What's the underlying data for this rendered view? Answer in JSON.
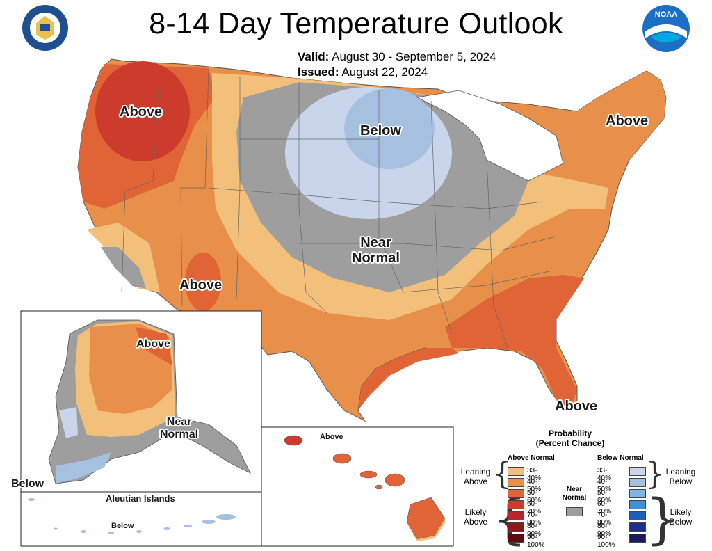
{
  "header": {
    "title": "8-14 Day Temperature Outlook",
    "valid_label": "Valid:",
    "valid_value": "August 30 - September 5, 2024",
    "issued_label": "Issued:",
    "issued_value": "August 22, 2024"
  },
  "logos": {
    "left": "department-of-commerce-seal",
    "right": "noaa-logo",
    "noaa_text": "NOAA"
  },
  "map_labels": {
    "nw_above": "Above",
    "sw_above": "Above",
    "ne_above": "Above",
    "fl_above": "Above",
    "below": "Below",
    "near_normal_1": "Near",
    "near_normal_2": "Normal"
  },
  "alaska": {
    "above": "Above",
    "near_1": "Near",
    "near_2": "Normal",
    "below": "Below",
    "aleutian_title": "Aleutian Islands",
    "aleutian_below": "Below"
  },
  "hawaii": {
    "above": "Above"
  },
  "legend": {
    "title_1": "Probability",
    "title_2": "(Percent Chance)",
    "above_head": "Above Normal",
    "below_head": "Below Normal",
    "near_1": "Near",
    "near_2": "Normal",
    "leaning_above_1": "Leaning",
    "leaning_above_2": "Above",
    "likely_above_1": "Likely",
    "likely_above_2": "Above",
    "leaning_below_1": "Leaning",
    "leaning_below_2": "Below",
    "likely_below_1": "Likely",
    "likely_below_2": "Below",
    "ranges": [
      "33-40%",
      "40-50%",
      "50-60%",
      "60-70%",
      "70-80%",
      "80-90%",
      "90-100%"
    ],
    "above_colors": [
      "#f2c07a",
      "#e89049",
      "#e06435",
      "#cc3b2c",
      "#b5252a",
      "#8a1b1b",
      "#5c0e0e"
    ],
    "below_colors": [
      "#c9d5ea",
      "#a6c0e0",
      "#7fb5e3",
      "#3d8fd6",
      "#1f5fb5",
      "#1c2f8c",
      "#1a1a5e"
    ],
    "near_color": "#9e9e9e"
  }
}
